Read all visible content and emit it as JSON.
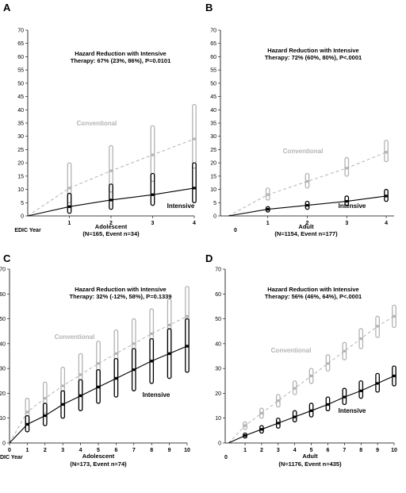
{
  "chart_data": [
    {
      "type": "line",
      "panel": "A",
      "annotation_line1": "Hazard Reduction with Intensive",
      "annotation_line2": "Therapy: 67% (23%, 86%), P=0.0101",
      "x_axis_start_label": "EDIC Year",
      "xlabel_line1": "Adolescent",
      "xlabel_line2": "(N=165, Event n=34)",
      "ylim": [
        0,
        70
      ],
      "y_ticks": [
        0,
        5,
        10,
        15,
        20,
        25,
        30,
        35,
        40,
        45,
        50,
        55,
        60,
        65,
        70
      ],
      "x_ticks": [
        1,
        2,
        3,
        4
      ],
      "xlim": [
        0,
        4
      ],
      "series": [
        {
          "name": "Conventional",
          "color": "#b3b3b3",
          "x": [
            0,
            1,
            2,
            3,
            4
          ],
          "y": [
            0,
            10.5,
            17,
            23,
            29
          ],
          "lower": [
            null,
            5,
            9,
            13,
            18
          ],
          "upper": [
            null,
            20,
            26.5,
            34,
            42
          ]
        },
        {
          "name": "Intensive",
          "color": "#000000",
          "x": [
            0,
            1,
            2,
            3,
            4
          ],
          "y": [
            0,
            3.5,
            6,
            8,
            10.5
          ],
          "lower": [
            null,
            1,
            2.5,
            4,
            5
          ],
          "upper": [
            null,
            8.5,
            12,
            16,
            20
          ]
        }
      ]
    },
    {
      "type": "line",
      "panel": "B",
      "annotation_line1": "Hazard Reduction with Intensive",
      "annotation_line2": "Therapy: 72% (60%, 80%), P<.0001",
      "x_axis_start_label": "0",
      "xlabel_line1": "Adult",
      "xlabel_line2": "(N=1154, Event n=177)",
      "ylim": [
        0,
        70
      ],
      "y_ticks": [
        0,
        5,
        10,
        15,
        20,
        25,
        30,
        35,
        40,
        45,
        50,
        55,
        60,
        65,
        70
      ],
      "x_ticks": [
        1,
        2,
        3,
        4
      ],
      "xlim": [
        -0.2,
        4.2
      ],
      "series": [
        {
          "name": "Conventional",
          "color": "#b3b3b3",
          "x": [
            0,
            1,
            2,
            3,
            4
          ],
          "y": [
            0,
            8,
            13,
            18,
            24
          ],
          "lower": [
            null,
            6,
            10.5,
            15,
            20.5
          ],
          "upper": [
            null,
            10.5,
            16,
            22,
            28.5
          ]
        },
        {
          "name": "Intensive",
          "color": "#000000",
          "x": [
            0,
            1,
            2,
            3,
            4
          ],
          "y": [
            0,
            2.5,
            4,
            5.5,
            7.5
          ],
          "lower": [
            null,
            1.5,
            2.5,
            4,
            5.5
          ],
          "upper": [
            null,
            3.5,
            5.5,
            7.5,
            10
          ]
        }
      ]
    },
    {
      "type": "line",
      "panel": "C",
      "annotation_line1": "Hazard Reduction with Intensive",
      "annotation_line2": "Therapy: 32% (-12%, 58%), P=0.1339",
      "x_axis_start_label": "EDIC Year",
      "xlabel_line1": "Adolescent",
      "xlabel_line2": "(N=173, Event n=74)",
      "ylim": [
        0,
        70
      ],
      "y_ticks": [
        0,
        10,
        20,
        30,
        40,
        50,
        60,
        70
      ],
      "x_ticks": [
        0,
        1,
        2,
        3,
        4,
        5,
        6,
        7,
        8,
        9,
        10
      ],
      "xlim": [
        0,
        10
      ],
      "series": [
        {
          "name": "Conventional",
          "color": "#b3b3b3",
          "x": [
            0,
            1,
            2,
            3,
            4,
            5,
            6,
            7,
            8,
            9,
            10
          ],
          "y": [
            0,
            12.5,
            18,
            23,
            27.5,
            32,
            36,
            40,
            44,
            47.5,
            51
          ],
          "lower": [
            null,
            8,
            12,
            16,
            19.5,
            23,
            26.5,
            29.5,
            32.5,
            35.5,
            38.5
          ],
          "upper": [
            null,
            18,
            24.5,
            30.5,
            36,
            41,
            45.5,
            50,
            54,
            58,
            63
          ]
        },
        {
          "name": "Intensive",
          "color": "#000000",
          "x": [
            0,
            1,
            2,
            3,
            4,
            5,
            6,
            7,
            8,
            9,
            10
          ],
          "y": [
            0,
            7.5,
            11,
            15.5,
            19,
            22.5,
            26,
            29.5,
            33,
            36,
            39
          ],
          "lower": [
            null,
            4.5,
            7,
            10,
            13,
            16,
            18.5,
            21,
            24,
            26,
            28.5
          ],
          "upper": [
            null,
            11,
            16,
            21,
            25.5,
            29.5,
            34,
            38,
            42,
            46,
            50
          ]
        }
      ]
    },
    {
      "type": "line",
      "panel": "D",
      "annotation_line1": "Hazard Reduction with Intensive",
      "annotation_line2": "Therapy: 56% (46%, 64%), P<.0001",
      "x_axis_start_label": "0",
      "xlabel_line1": "Adult",
      "xlabel_line2": "(N=1176, Event n=435)",
      "ylim": [
        0,
        70
      ],
      "y_ticks": [
        0,
        10,
        20,
        30,
        40,
        50,
        60,
        70
      ],
      "x_ticks": [
        1,
        2,
        3,
        4,
        5,
        6,
        7,
        8,
        9,
        10
      ],
      "xlim": [
        -0.2,
        10
      ],
      "series": [
        {
          "name": "Conventional",
          "color": "#b3b3b3",
          "x": [
            0,
            1,
            2,
            3,
            4,
            5,
            6,
            7,
            8,
            9,
            10
          ],
          "y": [
            0,
            7,
            12,
            17,
            22,
            27,
            32,
            37,
            42,
            47,
            51
          ],
          "lower": [
            null,
            5.5,
            10,
            14.5,
            19.5,
            24,
            29,
            33.5,
            38,
            42.5,
            46.5
          ],
          "upper": [
            null,
            8.5,
            14,
            19.5,
            25,
            30,
            35.5,
            40.5,
            46,
            51,
            55.5
          ]
        },
        {
          "name": "Intensive",
          "color": "#000000",
          "x": [
            0,
            1,
            2,
            3,
            4,
            5,
            6,
            7,
            8,
            9,
            10
          ],
          "y": [
            0,
            3,
            5.5,
            8,
            10.5,
            13,
            15.5,
            18.5,
            21,
            24,
            27
          ],
          "lower": [
            null,
            2,
            4,
            6,
            8.5,
            10.5,
            13,
            15.5,
            18,
            20.5,
            23
          ],
          "upper": [
            null,
            4,
            7,
            10,
            13,
            16,
            18.5,
            22,
            25,
            28,
            31
          ]
        }
      ]
    }
  ]
}
